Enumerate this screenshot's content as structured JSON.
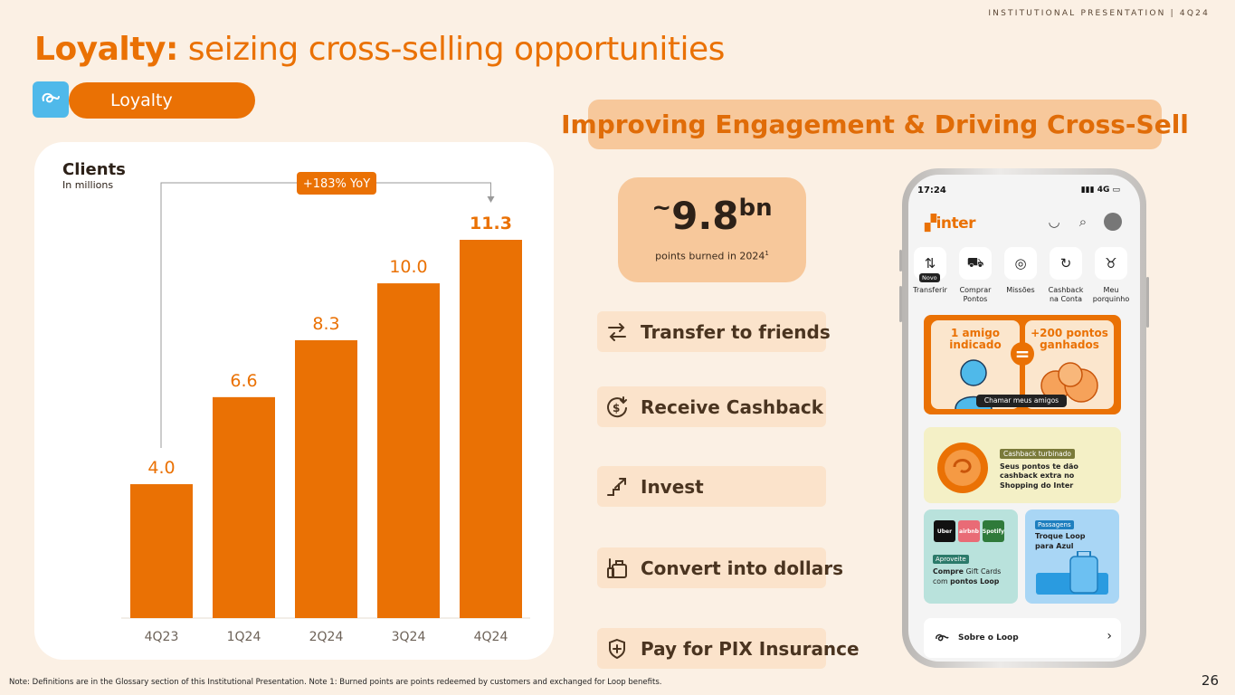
{
  "header_label": "INSTITUTIONAL PRESENTATION | 4Q24",
  "title": {
    "bold": "Loyalty:",
    "rest": " seizing cross-selling opportunities"
  },
  "section_tag": "Loyalty",
  "chart_data": {
    "type": "bar",
    "title": "Clients",
    "subtitle": "In millions",
    "categories": [
      "4Q23",
      "1Q24",
      "2Q24",
      "3Q24",
      "4Q24"
    ],
    "values": [
      4.0,
      6.6,
      8.3,
      10.0,
      11.3
    ],
    "value_labels": [
      "4.0",
      "6.6",
      "8.3",
      "10.0",
      "11.3"
    ],
    "ylim": [
      0,
      11.3
    ],
    "grid": false,
    "color": "#ea7104",
    "annotation": {
      "text": "+183% YoY",
      "from": "4Q23",
      "to": "4Q24"
    }
  },
  "banner": "Improving Engagement & Driving Cross-Sell",
  "stat": {
    "prefix": "~",
    "value": "9.8",
    "unit": "bn",
    "label": "points burned in 2024",
    "note_ref": "1"
  },
  "features": [
    {
      "label": "Transfer to friends",
      "icon": "transfer-arrows-icon"
    },
    {
      "label": "Receive Cashback",
      "icon": "cashback-coin-icon"
    },
    {
      "label": "Invest",
      "icon": "stairs-up-icon"
    },
    {
      "label": "Convert into dollars",
      "icon": "luggage-icon"
    },
    {
      "label": "Pay for PIX Insurance",
      "icon": "shield-plus-icon"
    }
  ],
  "phone": {
    "time": "17:24",
    "network": "4G",
    "brand": "inter",
    "quick_actions": [
      {
        "label": "Transferir",
        "icon": "transfer-icon",
        "badge": "Novo"
      },
      {
        "label": "Comprar\nPontos",
        "icon": "cart-icon"
      },
      {
        "label": "Missões",
        "icon": "target-icon"
      },
      {
        "label": "Cashback\nna Conta",
        "icon": "cashback-icon"
      },
      {
        "label": "Meu\nporquinho",
        "icon": "piggy-bank-icon"
      }
    ],
    "promo_referral": {
      "left": "1 amigo\nindicado",
      "right": "+200 pontos\nganhados",
      "button": "Chamar meus amigos"
    },
    "promo_cashback": {
      "badge": "Cashback turbinado",
      "text": "Seus pontos te dão cashback extra no Shopping do Inter"
    },
    "promo_giftcards": {
      "badge": "Aproveite",
      "text_pre": "Compre ",
      "text_mid": "Gift Cards",
      "text_post": "com ",
      "text_bold": "pontos Loop",
      "tiles": [
        "Uber",
        "airbnb",
        "Spotify"
      ]
    },
    "promo_flights": {
      "badge": "Passagens",
      "text": "Troque Loop\npara Azul"
    },
    "sobre": "Sobre o Loop"
  },
  "footnote": "Note: Definitions are in the Glossary section of this Institutional Presentation. Note 1: Burned points are points redeemed by customers and exchanged for Loop benefits.",
  "page_number": "26"
}
